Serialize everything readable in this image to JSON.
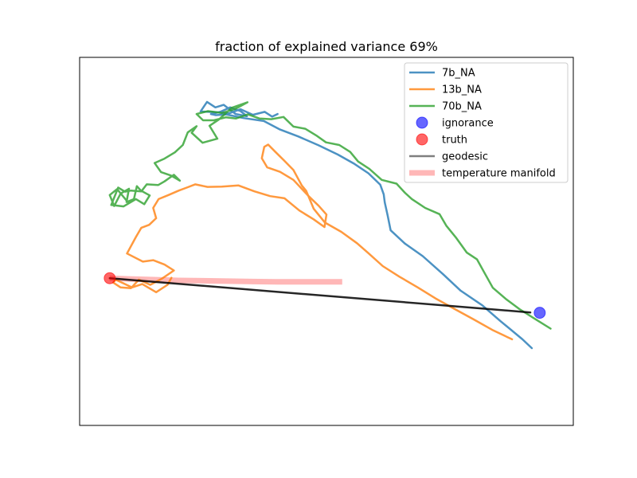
{
  "chart_data": {
    "type": "line",
    "title": "fraction of explained variance 69%",
    "xlabel": "",
    "ylabel": "",
    "axes_ticks": "none",
    "xlim": [
      0,
      100
    ],
    "ylim": [
      0,
      100
    ],
    "grid": false,
    "legend_position": "top-right",
    "colors": {
      "7b_NA": "#1f77b4",
      "13b_NA": "#ff7f0e",
      "70b_NA": "#2ca02c",
      "ignorance": "#0000ff",
      "truth": "#ff0000",
      "geodesic": "#000000",
      "temperature_manifold": "#ff9999"
    },
    "legend": [
      {
        "label": "7b_NA",
        "kind": "line",
        "color": "#1f77b4",
        "width": 2.5,
        "opacity": 0.8
      },
      {
        "label": "13b_NA",
        "kind": "line",
        "color": "#ff7f0e",
        "width": 2.5,
        "opacity": 0.8
      },
      {
        "label": "70b_NA",
        "kind": "line",
        "color": "#2ca02c",
        "width": 2.5,
        "opacity": 0.8
      },
      {
        "label": "ignorance",
        "kind": "marker",
        "color": "#0000ff",
        "opacity": 0.6
      },
      {
        "label": "truth",
        "kind": "marker",
        "color": "#ff0000",
        "opacity": 0.6
      },
      {
        "label": "geodesic",
        "kind": "line",
        "color": "#000000",
        "width": 2.5,
        "opacity": 0.5
      },
      {
        "label": "temperature manifold",
        "kind": "line",
        "color": "#ff9999",
        "width": 7,
        "opacity": 0.7
      }
    ],
    "points": {
      "ignorance": {
        "x": 93.2,
        "y": 30.6
      },
      "truth": {
        "x": 6.1,
        "y": 40.0
      }
    },
    "series": [
      {
        "name": "7b_NA",
        "x": [
          91.6,
          89.7,
          85.2,
          81.6,
          77.2,
          73.6,
          69.5,
          65.9,
          63.0,
          62.4,
          61.8,
          61.6,
          60.9,
          58.5,
          55.5,
          52.3,
          48.4,
          44.3,
          40.6,
          37.3,
          33.2,
          29.7,
          27.6,
          26.6,
          28.5,
          30.5,
          32.6,
          33.9,
          31.6,
          29.2,
          27.5,
          25.8,
          24.5,
          27.4,
          30.3,
          32.6,
          35.1,
          37.5,
          39.0,
          40.1
        ],
        "y": [
          21.0,
          23.4,
          28.4,
          32.6,
          36.6,
          41.1,
          46.0,
          49.4,
          53.0,
          57.0,
          60.6,
          62.8,
          65.4,
          68.5,
          71.2,
          73.6,
          76.1,
          78.5,
          80.4,
          82.7,
          83.5,
          84.5,
          84.3,
          84.6,
          85.2,
          86.4,
          85.4,
          84.0,
          84.6,
          87.1,
          86.4,
          87.9,
          85.3,
          85.1,
          84.8,
          85.9,
          84.4,
          85.2,
          83.9,
          84.6
        ]
      },
      {
        "name": "13b_NA",
        "x": [
          87.6,
          83.8,
          79.8,
          76.0,
          72.1,
          68.5,
          64.8,
          61.4,
          58.5,
          56.2,
          53.0,
          49.7,
          47.4,
          45.9,
          45.0,
          43.3,
          41.4,
          39.6,
          38.2,
          37.4,
          36.9,
          38.0,
          40.6,
          43.3,
          46.3,
          48.4,
          50.0,
          49.6,
          47.4,
          44.5,
          41.5,
          38.6,
          35.4,
          32.2,
          28.8,
          25.9,
          23.4,
          21.7,
          20.1,
          18.0,
          16.0,
          14.9,
          15.5,
          14.1,
          12.5,
          11.4,
          9.6,
          12.8,
          14.9,
          17.2,
          19.1,
          16.7,
          14.3,
          12.0,
          10.4,
          8.3,
          6.8,
          7.3,
          10.6,
          12.7,
          15.5,
          17.8,
          18.6
        ],
        "y": [
          23.4,
          25.8,
          28.8,
          31.6,
          34.5,
          37.5,
          40.4,
          43.3,
          46.8,
          49.5,
          52.6,
          55.1,
          58.9,
          63.7,
          65.2,
          69.4,
          72.0,
          74.4,
          76.3,
          75.7,
          72.6,
          70.1,
          68.9,
          66.7,
          62.4,
          59.7,
          57.3,
          53.9,
          56.0,
          58.4,
          61.7,
          62.3,
          63.6,
          65.2,
          64.9,
          64.8,
          65.5,
          64.6,
          63.8,
          62.6,
          61.5,
          59.1,
          56.3,
          54.5,
          53.7,
          51.2,
          46.7,
          44.5,
          44.9,
          43.7,
          42.1,
          39.9,
          38.2,
          39.6,
          37.3,
          37.5,
          38.8,
          39.6,
          37.5,
          38.4,
          36.2,
          38.2,
          40.1
        ]
      },
      {
        "name": "70b_NA",
        "x": [
          95.4,
          92.4,
          89.1,
          86.3,
          83.7,
          81.9,
          80.5,
          78.4,
          76.2,
          74.3,
          72.9,
          70.0,
          67.3,
          65.9,
          64.2,
          61.2,
          58.7,
          56.4,
          54.8,
          52.6,
          49.9,
          47.9,
          45.7,
          43.3,
          41.3,
          38.8,
          36.4,
          34.1,
          31.7,
          29.6,
          27.2,
          25.0,
          23.7,
          26.0,
          28.8,
          31.4,
          34.0,
          30.8,
          28.2,
          26.3,
          27.9,
          24.9,
          22.7,
          23.7,
          21.9,
          20.9,
          19.3,
          17.2,
          15.2,
          16.5,
          18.5,
          20.3,
          19.1,
          17.2,
          15.9,
          13.6,
          12.5,
          10.4,
          9.2,
          7.8,
          6.4,
          8.9,
          11.4,
          13.1,
          14.2,
          12.4,
          11.6,
          11.0,
          9.5,
          10.0,
          8.3,
          7.0,
          6.1,
          7.6,
          9.8
        ],
        "y": [
          26.3,
          28.8,
          31.6,
          34.4,
          37.4,
          41.7,
          45.1,
          47.0,
          51.1,
          54.2,
          57.4,
          59.1,
          61.5,
          63.2,
          65.7,
          66.7,
          69.7,
          71.7,
          74.3,
          76.2,
          76.9,
          78.8,
          80.6,
          81.2,
          83.8,
          83.2,
          83.4,
          84.5,
          83.4,
          83.7,
          82.9,
          82.9,
          84.6,
          85.4,
          84.9,
          85.9,
          87.8,
          86.3,
          83.1,
          81.4,
          77.9,
          76.8,
          79.5,
          81.3,
          79.6,
          76.2,
          74.2,
          72.5,
          71.3,
          68.8,
          67.9,
          66.5,
          68.1,
          66.3,
          65.3,
          65.5,
          63.6,
          63.8,
          63.5,
          64.6,
          59.9,
          59.5,
          61.5,
          60.1,
          62.5,
          63.8,
          65.0,
          61.5,
          60.7,
          64.3,
          63.0,
          59.6,
          62.6,
          64.2,
          60.6
        ]
      },
      {
        "name": "geodesic",
        "x": [
          6.1,
          91.3
        ],
        "y": [
          40.0,
          30.7
        ]
      },
      {
        "name": "temperature manifold",
        "x": [
          6.1,
          10.0,
          15.0,
          20.0,
          25.0,
          30.0,
          35.0,
          40.0,
          45.0,
          50.0,
          53.2
        ],
        "y": [
          40.0,
          39.8,
          39.6,
          39.4,
          39.3,
          39.2,
          39.1,
          39.0,
          39.0,
          39.0,
          39.0
        ]
      }
    ]
  }
}
